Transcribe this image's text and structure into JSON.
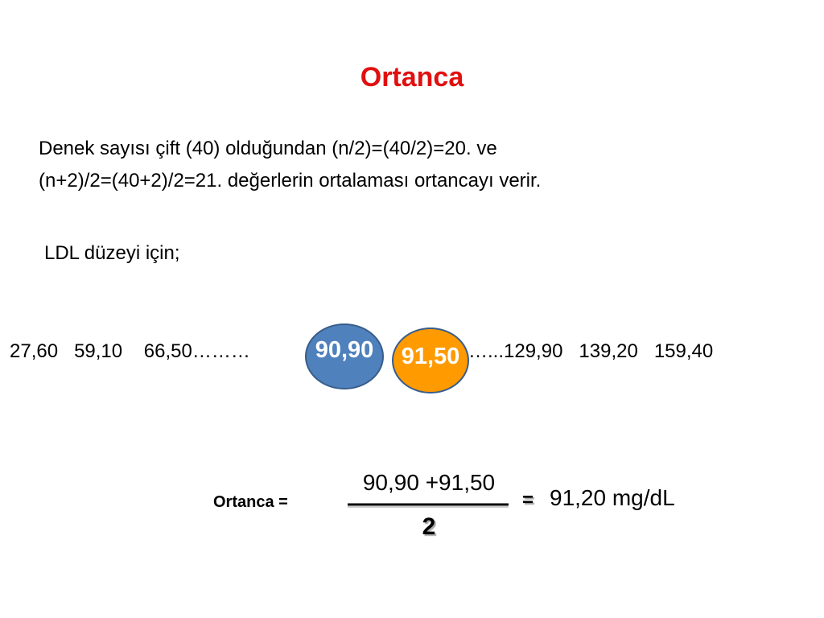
{
  "title": "Ortanca",
  "paragraph": {
    "lines": [
      "Denek sayısı çift (40) olduğundan (n/2)=(40/2)=20. ve",
      "(n+2)/2=(40+2)/2=21. değerlerin ortalaması ortancayı verir."
    ]
  },
  "subheading": "LDL düzeyi için;",
  "sequence": {
    "left": "27,60   59,10    66,50………",
    "middle": [
      "90,90",
      "91,50"
    ],
    "right": "…...129,90   139,20   159,40"
  },
  "formula": {
    "label": "Ortanca =",
    "numerator": "90,90 +91,50",
    "denominator": "2",
    "equals": "=",
    "result": "91,20 mg/dL"
  }
}
